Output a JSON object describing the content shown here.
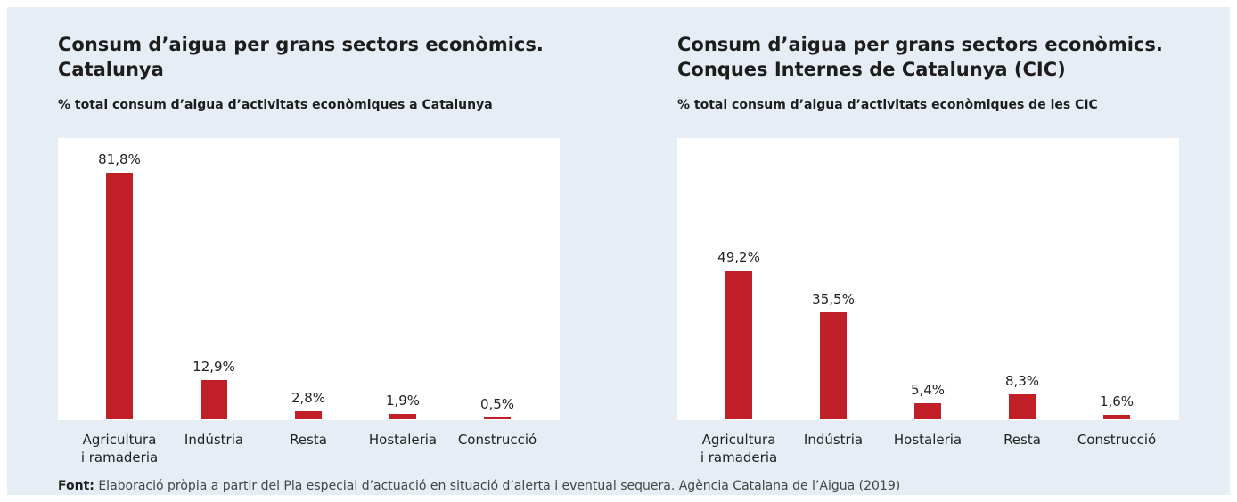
{
  "charts": [
    {
      "chart_data": {
        "type": "bar",
        "title": "Consum d’aigua per grans sectors econòmics. Catalunya",
        "subtitle": "% total consum d’aigua d’activitats econòmiques a Catalunya",
        "categories": [
          "Agricultura i ramaderia",
          "Indústria",
          "Resta",
          "Hostaleria",
          "Construcció"
        ],
        "values": [
          81.8,
          12.9,
          2.8,
          1.9,
          0.5
        ],
        "value_labels": [
          "81,8%",
          "12,9%",
          "2,8%",
          "1,9%",
          "0,5%"
        ],
        "color": "#c01f28"
      }
    },
    {
      "chart_data": {
        "type": "bar",
        "title": "Consum d’aigua per grans sectors econòmics. Conques Internes de Catalunya (CIC)",
        "subtitle": "% total consum d’aigua d’activitats econòmiques de les CIC",
        "categories": [
          "Agricultura i ramaderia",
          "Indústria",
          "Hostaleria",
          "Resta",
          "Construcció"
        ],
        "values": [
          49.2,
          35.5,
          5.4,
          8.3,
          1.6
        ],
        "value_labels": [
          "49,2%",
          "35,5%",
          "5,4%",
          "8,3%",
          "1,6%"
        ],
        "color": "#c01f28"
      }
    }
  ],
  "source": {
    "label": "Font:",
    "text": "Elaboració pròpia a partir del Pla especial d’actuació en situació d’alerta i eventual sequera. Agència Catalana de l’Aigua (2019)"
  }
}
